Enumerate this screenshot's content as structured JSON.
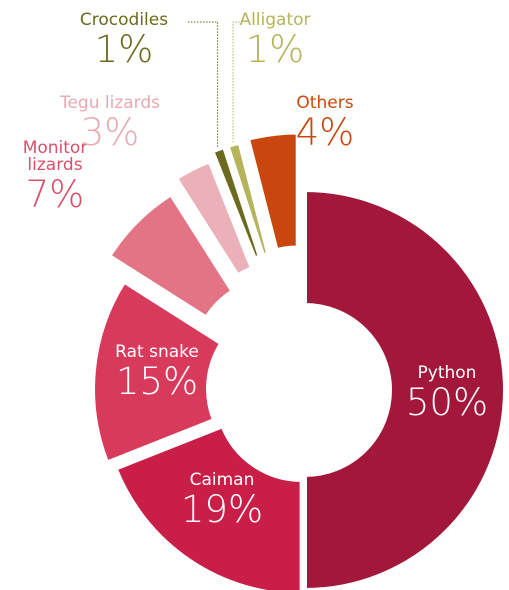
{
  "chart_data": {
    "type": "donut",
    "categories": [
      "Python",
      "Caiman",
      "Rat snake",
      "Monitor lizards",
      "Tegu lizards",
      "Crocodiles",
      "Alligator",
      "Others"
    ],
    "values": [
      50,
      19,
      15,
      7,
      3,
      1,
      1,
      4
    ],
    "value_labels": [
      "50%",
      "19%",
      "15%",
      "7%",
      "3%",
      "1%",
      "1%",
      "4%"
    ],
    "colors": [
      "#a3173a",
      "#c91e47",
      "#d83a5c",
      "#e27485",
      "#ecb1b8",
      "#6b6a1e",
      "#b5b45a",
      "#c9470e"
    ]
  }
}
